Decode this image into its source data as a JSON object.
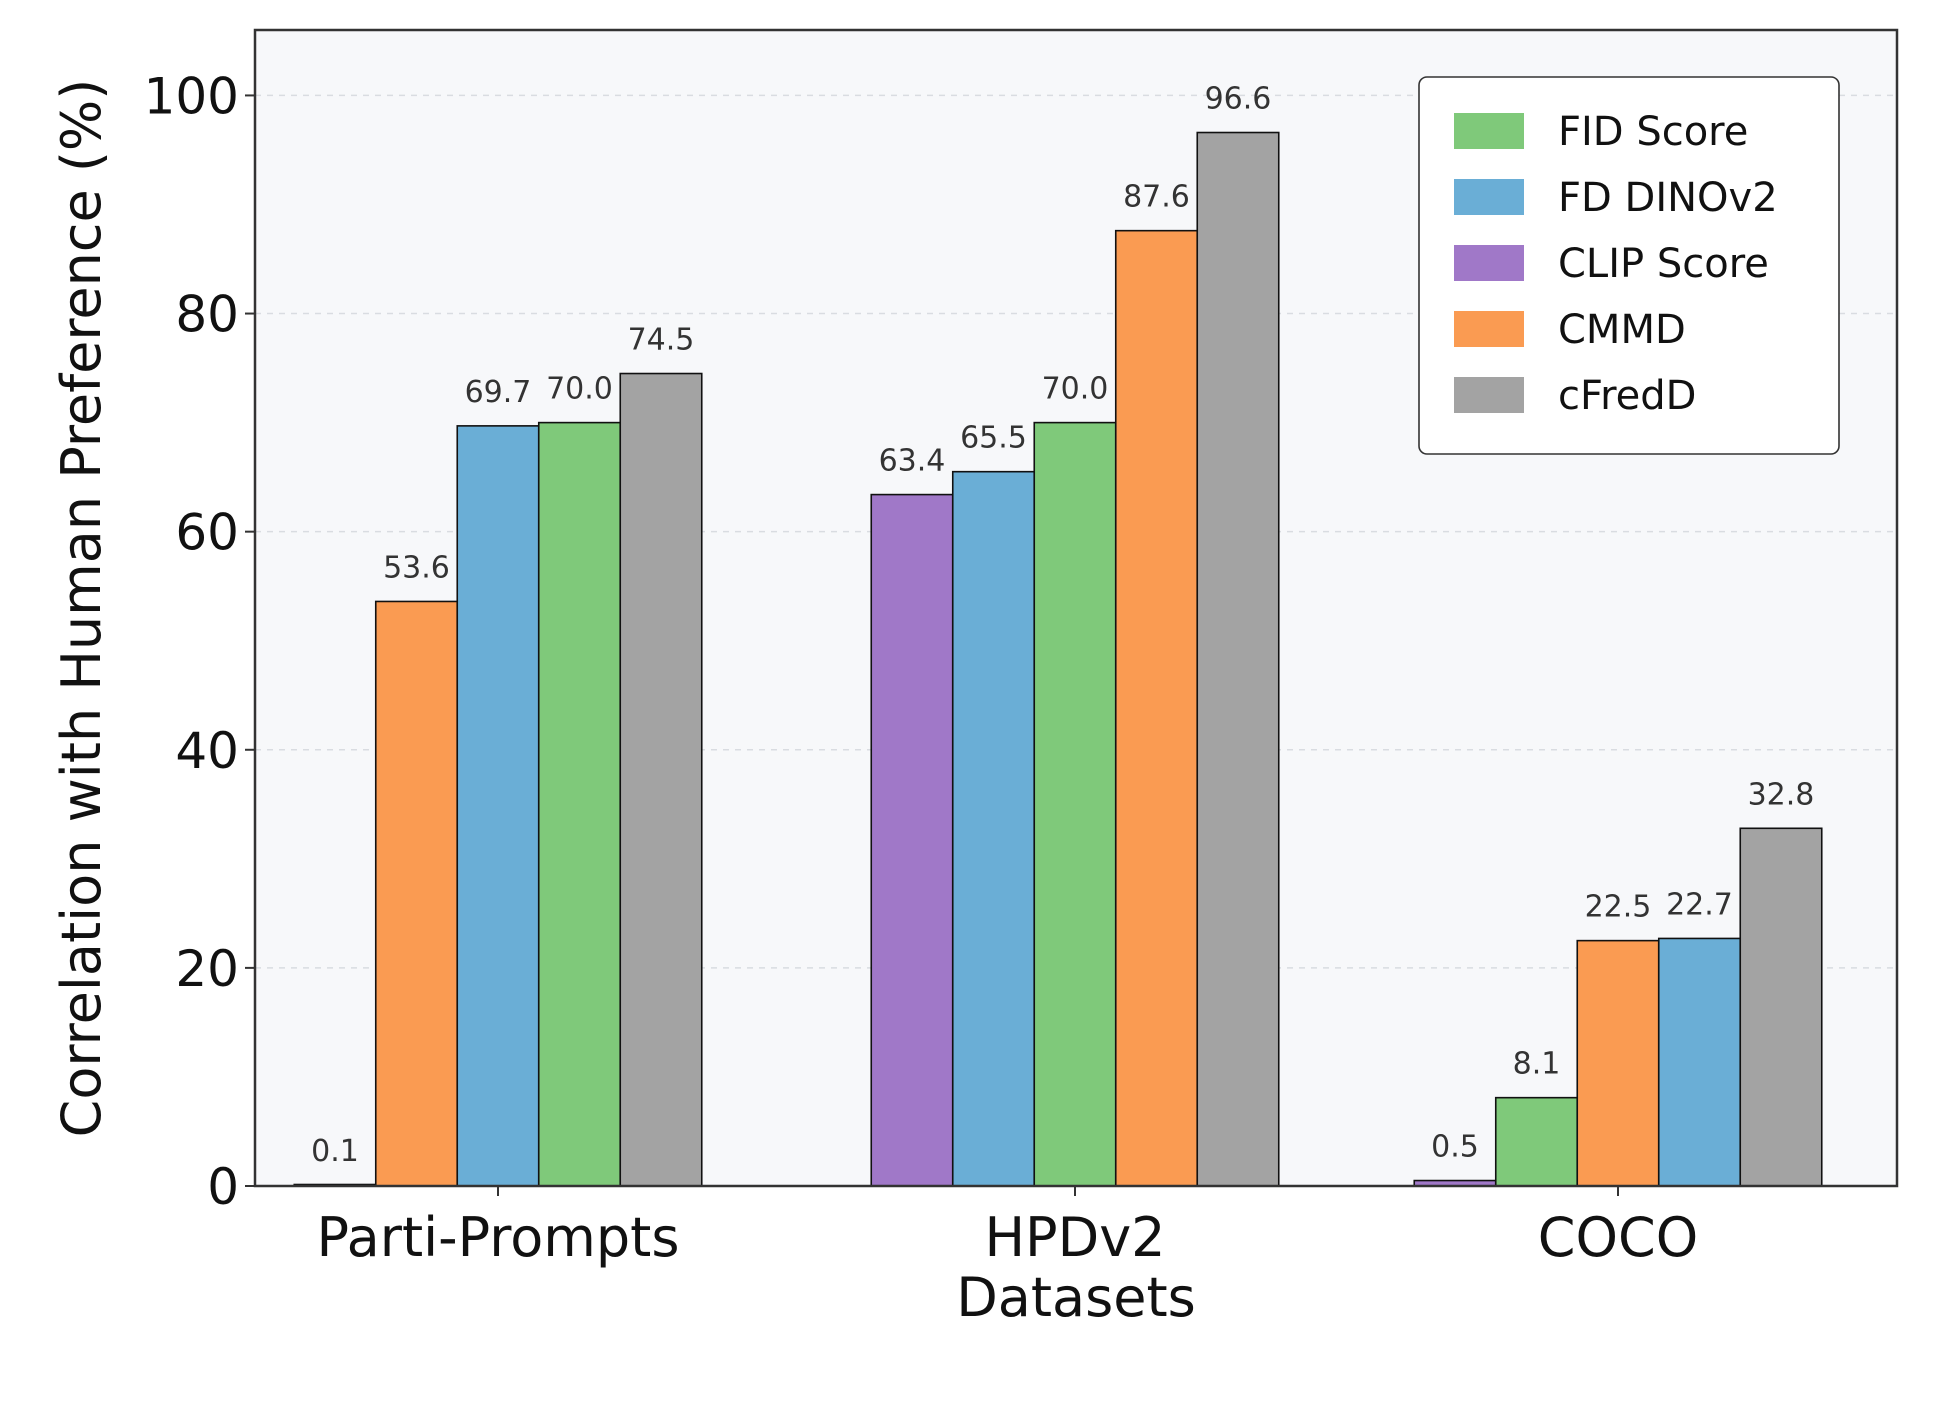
{
  "chart_data": {
    "type": "bar",
    "categories": [
      "Parti-Prompts",
      "HPDv2",
      "COCO"
    ],
    "xlabel": "Datasets",
    "ylabel": "Correlation with Human Preference (%)",
    "ylim": [
      0,
      106
    ],
    "yticks": [
      0,
      20,
      40,
      60,
      80,
      100
    ],
    "grid": true,
    "legend_position": "top-right",
    "series": [
      {
        "name": "FID Score",
        "color": "#7fc97a"
      },
      {
        "name": "FD DINOv2",
        "color": "#6aaed6"
      },
      {
        "name": "CLIP Score",
        "color": "#a078c8"
      },
      {
        "name": "CMMD",
        "color": "#fa9b52"
      },
      {
        "name": "cFredD",
        "color": "#a3a3a3"
      }
    ],
    "groups": [
      {
        "category": "Parti-Prompts",
        "bars": [
          {
            "series": "CLIP Score",
            "value": 0.1,
            "label": "0.1"
          },
          {
            "series": "CMMD",
            "value": 53.6,
            "label": "53.6"
          },
          {
            "series": "FD DINOv2",
            "value": 69.7,
            "label": "69.7"
          },
          {
            "series": "FID Score",
            "value": 70.0,
            "label": "70.0"
          },
          {
            "series": "cFredD",
            "value": 74.5,
            "label": "74.5"
          }
        ]
      },
      {
        "category": "HPDv2",
        "bars": [
          {
            "series": "CLIP Score",
            "value": 63.4,
            "label": "63.4"
          },
          {
            "series": "FD DINOv2",
            "value": 65.5,
            "label": "65.5"
          },
          {
            "series": "FID Score",
            "value": 70.0,
            "label": "70.0"
          },
          {
            "series": "CMMD",
            "value": 87.6,
            "label": "87.6"
          },
          {
            "series": "cFredD",
            "value": 96.6,
            "label": "96.6"
          }
        ]
      },
      {
        "category": "COCO",
        "bars": [
          {
            "series": "CLIP Score",
            "value": 0.5,
            "label": "0.5"
          },
          {
            "series": "FID Score",
            "value": 8.1,
            "label": "8.1"
          },
          {
            "series": "CMMD",
            "value": 22.5,
            "label": "22.5"
          },
          {
            "series": "FD DINOv2",
            "value": 22.7,
            "label": "22.7"
          },
          {
            "series": "cFredD",
            "value": 32.8,
            "label": "32.8"
          }
        ]
      }
    ]
  }
}
